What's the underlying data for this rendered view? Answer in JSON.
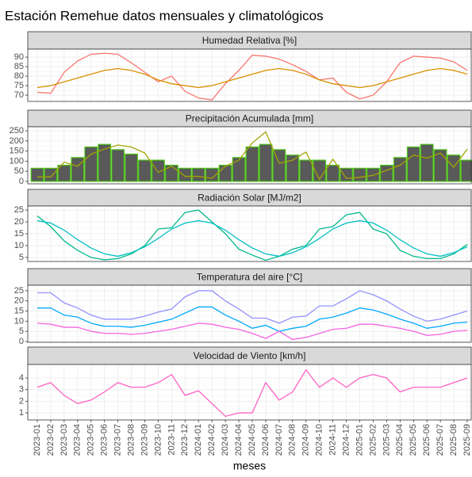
{
  "title": "Estación Remehue datos mensuales y climatológicos",
  "chart_data": [
    {
      "type": "line",
      "title": "Humedad Relativa [%]",
      "ylim": [
        66.7,
        94.2
      ],
      "yticks": [
        70,
        75,
        80,
        85,
        90
      ],
      "grid": true,
      "series": [
        {
          "color": "#F8766D",
          "values": [
            71.5,
            71,
            82,
            88,
            91.5,
            92,
            91.5,
            87,
            82,
            77,
            80,
            72,
            68.5,
            67.5,
            76,
            83,
            91,
            90.5,
            89,
            86,
            82.5,
            78,
            79,
            71.5,
            68,
            70,
            77,
            87,
            90.5,
            90,
            89.5,
            87.5,
            83
          ]
        },
        {
          "color": "#D89000",
          "values": [
            74,
            75,
            77,
            79,
            81,
            83,
            84,
            83,
            81,
            78,
            76,
            75,
            74,
            75,
            77,
            79,
            81,
            83,
            84,
            83,
            81,
            78,
            76,
            75,
            74,
            75,
            77,
            79,
            81,
            83,
            84,
            83,
            81
          ]
        }
      ]
    },
    {
      "type": "line",
      "title": "Precipitación Acumulada [mm]",
      "ylim": [
        -12,
        270
      ],
      "yticks": [
        0,
        50,
        100,
        150,
        200,
        250
      ],
      "grid": true,
      "series": [
        {
          "type": "bar",
          "color": "#595959",
          "edge_color": "#4CC417",
          "values": [
            65,
            65,
            80,
            118,
            170,
            183,
            157,
            135,
            105,
            105,
            80,
            65,
            65,
            65,
            80,
            118,
            170,
            183,
            157,
            130,
            105,
            105,
            80,
            65,
            65,
            65,
            80,
            118,
            170,
            183,
            157,
            130,
            105
          ]
        },
        {
          "color": "#A3A500",
          "values": [
            22,
            22,
            95,
            75,
            135,
            160,
            180,
            170,
            140,
            45,
            75,
            25,
            25,
            15,
            75,
            105,
            190,
            245,
            90,
            105,
            145,
            10,
            110,
            15,
            20,
            30,
            55,
            80,
            130,
            115,
            140,
            70,
            160
          ]
        }
      ]
    },
    {
      "type": "line",
      "title": "Radiación Solar [MJ/m2]",
      "ylim": [
        3.3,
        26.7
      ],
      "yticks": [
        5,
        10,
        15,
        20,
        25
      ],
      "grid": true,
      "series": [
        {
          "color": "#00B98B",
          "values": [
            22.5,
            18,
            12,
            8,
            5,
            4,
            4.5,
            6.5,
            10,
            17,
            17.5,
            24,
            25,
            20,
            15,
            8.5,
            6,
            3.8,
            5.5,
            8.5,
            10,
            17,
            18,
            23,
            24,
            17,
            15,
            8,
            5.5,
            4.5,
            4.5,
            6.5,
            10.5
          ]
        },
        {
          "color": "#00BFC4",
          "values": [
            20.5,
            19.5,
            16.5,
            12.5,
            9,
            6.5,
            5.5,
            7,
            9.5,
            13,
            17,
            19.5,
            20.5,
            19.5,
            16.5,
            12.5,
            9,
            6.5,
            5.5,
            7,
            9.5,
            13,
            17,
            19.5,
            20.5,
            19.5,
            16.5,
            12.5,
            9,
            6.5,
            5.5,
            7,
            9.5
          ]
        }
      ]
    },
    {
      "type": "line",
      "title": "Temperatura del aire [°C]",
      "ylim": [
        -0.4,
        27.7
      ],
      "yticks": [
        0,
        5,
        10,
        15,
        20,
        25
      ],
      "grid": true,
      "series": [
        {
          "color": "#9590FF",
          "values": [
            24,
            24,
            19,
            16.5,
            13,
            11,
            11,
            11,
            12.5,
            14.5,
            16,
            22,
            25,
            25,
            20,
            16,
            11.5,
            11.5,
            9,
            12,
            12.5,
            17.5,
            17.5,
            21,
            25,
            23,
            20,
            16,
            12.5,
            10,
            11,
            13,
            15
          ]
        },
        {
          "color": "#00A9FF",
          "values": [
            16.5,
            16.5,
            13,
            12,
            9,
            7.5,
            7.5,
            7,
            8,
            9.5,
            11,
            14,
            17,
            17,
            13,
            10,
            6.5,
            8,
            5,
            6.5,
            7.5,
            11,
            12,
            14,
            16.5,
            15.5,
            13.5,
            11,
            9,
            6.5,
            7.5,
            9,
            9.5
          ]
        },
        {
          "color": "#F564E3",
          "values": [
            9,
            8.5,
            7,
            7,
            5,
            4,
            4,
            3.5,
            4,
            5,
            6,
            7.5,
            9,
            8.5,
            7,
            6,
            4,
            1.5,
            5,
            1,
            2,
            4,
            6,
            6.5,
            8.5,
            8.5,
            7.5,
            6.5,
            5,
            3,
            3.5,
            5,
            5.5
          ]
        }
      ]
    },
    {
      "type": "line",
      "title": "Velocidad de Viento [km/h]",
      "ylim": [
        0.39,
        5.16
      ],
      "yticks": [
        1,
        2,
        3,
        4
      ],
      "grid": true,
      "x_label": "meses",
      "categories": [
        "2023-01",
        "2023-02",
        "2023-03",
        "2023-04",
        "2023-05",
        "2023-06",
        "2023-07",
        "2023-08",
        "2023-09",
        "2023-10",
        "2023-11",
        "2023-12",
        "2024-01",
        "2024-02",
        "2024-03",
        "2024-04",
        "2024-05",
        "2024-06",
        "2024-07",
        "2024-08",
        "2024-09",
        "2024-10",
        "2024-11",
        "2024-12",
        "2025-01",
        "2025-02",
        "2025-03",
        "2025-04",
        "2025-05",
        "2025-06",
        "2025-07",
        "2025-08",
        "2025-09"
      ],
      "series": [
        {
          "color": "#FF61C3",
          "values": [
            3.2,
            3.6,
            2.5,
            1.8,
            2.1,
            2.8,
            3.6,
            3.2,
            3.2,
            3.6,
            4.3,
            2.5,
            2.9,
            1.8,
            0.7,
            1.0,
            1.0,
            3.6,
            2.1,
            2.8,
            4.7,
            3.2,
            4.0,
            3.2,
            4.0,
            4.3,
            4.0,
            2.8,
            3.2,
            3.2,
            3.2,
            3.6,
            4.0
          ]
        }
      ]
    }
  ]
}
